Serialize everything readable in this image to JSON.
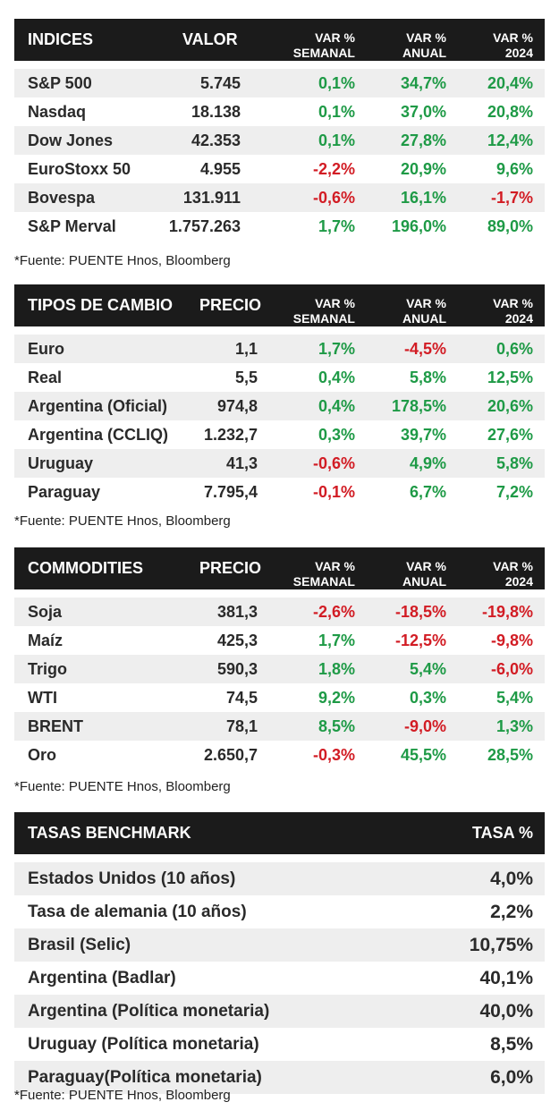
{
  "indices": {
    "headers": {
      "name": "INDICES",
      "value": "VALOR",
      "semanal": [
        "VAR %",
        "SEMANAL"
      ],
      "anual": [
        "VAR %",
        "ANUAL"
      ],
      "ytd": [
        "VAR %",
        "2024"
      ]
    },
    "rows": [
      {
        "name": "S&P 500",
        "value": "5.745",
        "semanal": "0,1%",
        "anual": "34,7%",
        "ytd": "20,4%",
        "semanal_sign": "pos",
        "anual_sign": "pos",
        "ytd_sign": "pos"
      },
      {
        "name": "Nasdaq",
        "value": "18.138",
        "semanal": "0,1%",
        "anual": "37,0%",
        "ytd": "20,8%",
        "semanal_sign": "pos",
        "anual_sign": "pos",
        "ytd_sign": "pos"
      },
      {
        "name": "Dow Jones",
        "value": "42.353",
        "semanal": "0,1%",
        "anual": "27,8%",
        "ytd": "12,4%",
        "semanal_sign": "pos",
        "anual_sign": "pos",
        "ytd_sign": "pos"
      },
      {
        "name": "EuroStoxx 50",
        "value": "4.955",
        "semanal": "-2,2%",
        "anual": "20,9%",
        "ytd": "9,6%",
        "semanal_sign": "neg",
        "anual_sign": "pos",
        "ytd_sign": "pos"
      },
      {
        "name": "Bovespa",
        "value": "131.911",
        "semanal": "-0,6%",
        "anual": "16,1%",
        "ytd": "-1,7%",
        "semanal_sign": "neg",
        "anual_sign": "pos",
        "ytd_sign": "neg"
      },
      {
        "name": "S&P Merval",
        "value": "1.757.263",
        "semanal": "1,7%",
        "anual": "196,0%",
        "ytd": "89,0%",
        "semanal_sign": "pos",
        "anual_sign": "pos",
        "ytd_sign": "pos"
      }
    ],
    "note": "*Fuente: PUENTE Hnos, Bloomberg"
  },
  "cambio": {
    "headers": {
      "name": "TIPOS DE CAMBIO",
      "value": "PRECIO",
      "semanal": [
        "VAR %",
        "SEMANAL"
      ],
      "anual": [
        "VAR %",
        "ANUAL"
      ],
      "ytd": [
        "VAR %",
        "2024"
      ]
    },
    "rows": [
      {
        "name": "Euro",
        "value": "1,1",
        "semanal": "1,7%",
        "anual": "-4,5%",
        "ytd": "0,6%",
        "semanal_sign": "pos",
        "anual_sign": "neg",
        "ytd_sign": "pos"
      },
      {
        "name": "Real",
        "value": "5,5",
        "semanal": "0,4%",
        "anual": "5,8%",
        "ytd": "12,5%",
        "semanal_sign": "pos",
        "anual_sign": "pos",
        "ytd_sign": "pos"
      },
      {
        "name": "Argentina (Oficial)",
        "value": "974,8",
        "semanal": "0,4%",
        "anual": "178,5%",
        "ytd": "20,6%",
        "semanal_sign": "pos",
        "anual_sign": "pos",
        "ytd_sign": "pos"
      },
      {
        "name": "Argentina (CCLIQ)",
        "value": "1.232,7",
        "semanal": "0,3%",
        "anual": "39,7%",
        "ytd": "27,6%",
        "semanal_sign": "pos",
        "anual_sign": "pos",
        "ytd_sign": "pos"
      },
      {
        "name": "Uruguay",
        "value": "41,3",
        "semanal": "-0,6%",
        "anual": "4,9%",
        "ytd": "5,8%",
        "semanal_sign": "neg",
        "anual_sign": "pos",
        "ytd_sign": "pos"
      },
      {
        "name": "Paraguay",
        "value": "7.795,4",
        "semanal": "-0,1%",
        "anual": "6,7%",
        "ytd": "7,2%",
        "semanal_sign": "neg",
        "anual_sign": "pos",
        "ytd_sign": "pos"
      }
    ],
    "note": "*Fuente: PUENTE Hnos, Bloomberg"
  },
  "commodities": {
    "headers": {
      "name": "COMMODITIES",
      "value": "PRECIO",
      "semanal": [
        "VAR %",
        "SEMANAL"
      ],
      "anual": [
        "VAR %",
        "ANUAL"
      ],
      "ytd": [
        "VAR %",
        "2024"
      ]
    },
    "rows": [
      {
        "name": "Soja",
        "value": "381,3",
        "semanal": "-2,6%",
        "anual": "-18,5%",
        "ytd": "-19,8%",
        "semanal_sign": "neg",
        "anual_sign": "neg",
        "ytd_sign": "neg"
      },
      {
        "name": "Maíz",
        "value": "425,3",
        "semanal": "1,7%",
        "anual": "-12,5%",
        "ytd": "-9,8%",
        "semanal_sign": "pos",
        "anual_sign": "neg",
        "ytd_sign": "neg"
      },
      {
        "name": "Trigo",
        "value": "590,3",
        "semanal": "1,8%",
        "anual": "5,4%",
        "ytd": "-6,0%",
        "semanal_sign": "pos",
        "anual_sign": "pos",
        "ytd_sign": "neg"
      },
      {
        "name": "WTI",
        "value": "74,5",
        "semanal": "9,2%",
        "anual": "0,3%",
        "ytd": "5,4%",
        "semanal_sign": "pos",
        "anual_sign": "pos",
        "ytd_sign": "pos"
      },
      {
        "name": "BRENT",
        "value": "78,1",
        "semanal": "8,5%",
        "anual": "-9,0%",
        "ytd": "1,3%",
        "semanal_sign": "pos",
        "anual_sign": "neg",
        "ytd_sign": "pos"
      },
      {
        "name": "Oro",
        "value": "2.650,7",
        "semanal": "-0,3%",
        "anual": "45,5%",
        "ytd": "28,5%",
        "semanal_sign": "neg",
        "anual_sign": "pos",
        "ytd_sign": "pos"
      }
    ],
    "note": "*Fuente: PUENTE Hnos, Bloomberg"
  },
  "tasas": {
    "headers": {
      "name": "TASAS BENCHMARK",
      "rate": "TASA %"
    },
    "rows": [
      {
        "name": "Estados Unidos (10 años)",
        "rate": "4,0%"
      },
      {
        "name": "Tasa de alemania (10 años)",
        "rate": "2,2%"
      },
      {
        "name": "Brasil (Selic)",
        "rate": "10,75%"
      },
      {
        "name": "Argentina (Badlar)",
        "rate": "40,1%"
      },
      {
        "name": "Argentina (Política monetaria)",
        "rate": "40,0%"
      },
      {
        "name": "Uruguay (Política monetaria)",
        "rate": "8,5%"
      },
      {
        "name": "Paraguay(Política monetaria)",
        "rate": "6,0%"
      }
    ],
    "note": "*Fuente: PUENTE Hnos, Bloomberg"
  },
  "colors": {
    "header_bg": "#1b1b1b",
    "positive": "#1e9a46",
    "negative": "#d21c24",
    "alt_row": "#eeeeee"
  }
}
